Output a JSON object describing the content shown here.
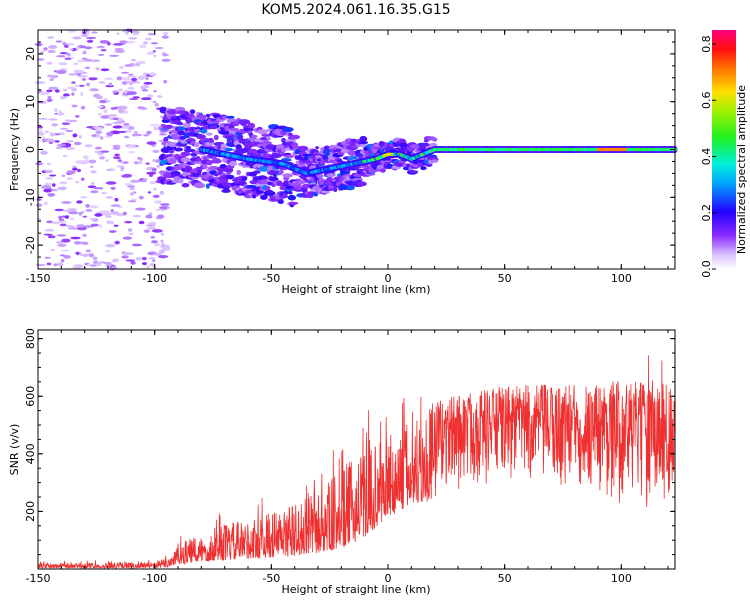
{
  "title": "KOM5.2024.061.16.35.G15",
  "chart_data": [
    {
      "type": "heatmap",
      "xlabel": "Height of straight line (km)",
      "ylabel": "Frequency (Hz)",
      "xlim": [
        -150,
        123
      ],
      "ylim": [
        -25,
        25
      ],
      "x_ticks": [
        -150,
        -100,
        -50,
        0,
        50,
        100
      ],
      "y_ticks": [
        -20,
        -10,
        0,
        10,
        20
      ],
      "colorbar": {
        "label": "Normalized spectral amplitude",
        "range": [
          0,
          0.85
        ],
        "ticks": [
          0.0,
          0.2,
          0.4,
          0.6,
          0.8
        ],
        "colormap": "white-violet-blue-cyan-green-yellow-red-magenta"
      },
      "ridge": {
        "description_points_x": [
          -95,
          -80,
          -60,
          -45,
          -35,
          -25,
          -15,
          -5,
          0,
          5,
          10,
          20,
          50,
          100,
          123
        ],
        "description_points_y": [
          1,
          0,
          -2,
          -3,
          -5,
          -4,
          -3,
          -2,
          -1,
          -1,
          -2,
          0,
          0,
          0,
          0
        ],
        "peak_amplitude_zone": [
          20,
          123
        ]
      },
      "scatter_zone": {
        "x": [
          -150,
          -95
        ],
        "y": [
          -25,
          25
        ]
      }
    },
    {
      "type": "line",
      "xlabel": "Height of straight line (km)",
      "ylabel": "SNR (v/v)",
      "xlim": [
        -150,
        123
      ],
      "ylim": [
        0,
        830
      ],
      "x_ticks": [
        -150,
        -100,
        -50,
        0,
        50,
        100
      ],
      "y_ticks": [
        200,
        400,
        600,
        800
      ],
      "series": [
        {
          "color": "#f03030",
          "envelope": {
            "x": [
              -150,
              -100,
              -95,
              -90,
              -80,
              -70,
              -60,
              -50,
              -40,
              -30,
              -20,
              -10,
              0,
              10,
              20,
              30,
              40,
              50,
              60,
              70,
              80,
              90,
              100,
              110,
              115,
              120,
              123
            ],
            "low": [
              3,
              3,
              5,
              15,
              25,
              30,
              35,
              40,
              45,
              55,
              70,
              110,
              180,
              220,
              240,
              260,
              280,
              285,
              275,
              260,
              250,
              235,
              215,
              200,
              150,
              200,
              210
            ],
            "high": [
              20,
              25,
              40,
              90,
              120,
              160,
              170,
              200,
              230,
              270,
              350,
              420,
              460,
              530,
              580,
              610,
              625,
              635,
              640,
              640,
              645,
              650,
              655,
              650,
              680,
              640,
              660
            ]
          }
        }
      ]
    }
  ]
}
